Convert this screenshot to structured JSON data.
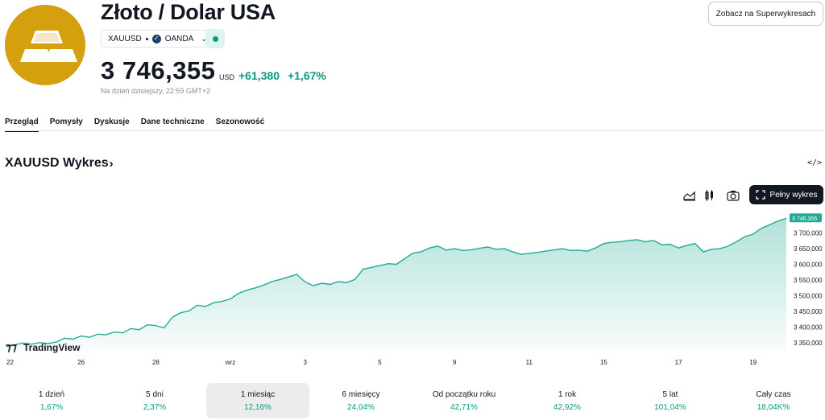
{
  "header": {
    "title": "Złoto / Dolar USA",
    "ticker": "XAUUSD",
    "exchange": "OANDA",
    "price": "3 746,355",
    "currency": "USD",
    "change": "+61,380",
    "change_pct": "+1,67%",
    "as_of": "Na dzień dzisiejszy, 22:59 GMT+2",
    "super_chart_button": "Zobacz na Superwykresach",
    "logo_icon": "gold-bars-icon",
    "accent_color": "#d4a00e",
    "positive_color": "#089981"
  },
  "tabs": [
    {
      "label": "Przegląd",
      "active": true
    },
    {
      "label": "Pomysły",
      "active": false
    },
    {
      "label": "Dyskusje",
      "active": false
    },
    {
      "label": "Dane techniczne",
      "active": false
    },
    {
      "label": "Sezonowość",
      "active": false
    }
  ],
  "chart_section": {
    "title": "XAUUSD Wykres",
    "embed_icon": "code-embed-icon",
    "full_chart_button": "Pełny wykres",
    "watermark": "TradingView"
  },
  "chart_data": {
    "type": "area",
    "series": [
      {
        "values": [
          3338,
          3344,
          3350,
          3346,
          3351,
          3348,
          3353,
          3365,
          3362,
          3372,
          3368,
          3378,
          3376,
          3385,
          3382,
          3396,
          3392,
          3408,
          3405,
          3398,
          3432,
          3446,
          3452,
          3470,
          3466,
          3478,
          3482,
          3490,
          3508,
          3518,
          3525,
          3534,
          3545,
          3552,
          3560,
          3568,
          3544,
          3532,
          3540,
          3536,
          3545,
          3542,
          3552,
          3585,
          3590,
          3596,
          3602,
          3600,
          3618,
          3636,
          3640,
          3652,
          3658,
          3645,
          3650,
          3644,
          3646,
          3651,
          3655,
          3648,
          3650,
          3640,
          3632,
          3635,
          3638,
          3642,
          3646,
          3650,
          3644,
          3645,
          3642,
          3652,
          3666,
          3670,
          3672,
          3676,
          3678,
          3672,
          3676,
          3662,
          3664,
          3652,
          3660,
          3666,
          3640,
          3648,
          3650,
          3658,
          3672,
          3688,
          3696,
          3715,
          3726,
          3738,
          3746.355
        ]
      }
    ],
    "x_tick_labels": [
      "22",
      "26",
      "28",
      "wrz",
      "3",
      "5",
      "9",
      "11",
      "15",
      "17",
      "19"
    ],
    "x_tick_positions": [
      0,
      9,
      18,
      27,
      36,
      45,
      54,
      63,
      72,
      81,
      90
    ],
    "y_tick_labels": [
      "3 700,000",
      "3 650,000",
      "3 600,000",
      "3 550,000",
      "3 500,000",
      "3 450,000",
      "3 400,000",
      "3 350,000"
    ],
    "y_ticks": [
      3700,
      3650,
      3600,
      3550,
      3500,
      3450,
      3400,
      3350
    ],
    "ylim": [
      3325,
      3760
    ],
    "last_value_label": "3 746,355",
    "line_color": "#22ab94"
  },
  "periods": [
    {
      "label": "1 dzień",
      "value": "1,67%",
      "selected": false
    },
    {
      "label": "5 dni",
      "value": "2,37%",
      "selected": false
    },
    {
      "label": "1 miesiąc",
      "value": "12,16%",
      "selected": true
    },
    {
      "label": "6 miesięcy",
      "value": "24,04%",
      "selected": false
    },
    {
      "label": "Od początku roku",
      "value": "42,71%",
      "selected": false
    },
    {
      "label": "1 rok",
      "value": "42,92%",
      "selected": false
    },
    {
      "label": "5 lat",
      "value": "101,04%",
      "selected": false
    },
    {
      "label": "Cały czas",
      "value": "18,04K%",
      "selected": false
    }
  ]
}
